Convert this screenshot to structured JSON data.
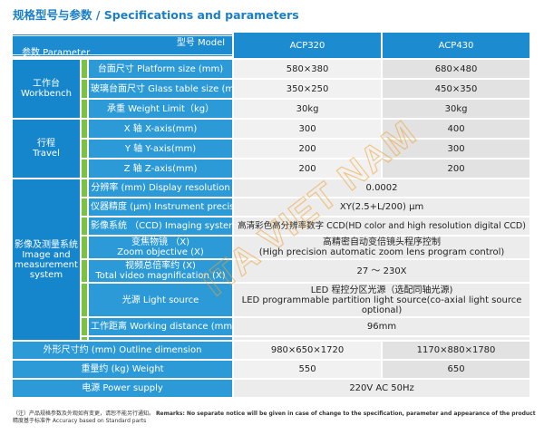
{
  "title": "规格型号与参数 / Specifications and parameters",
  "header": {
    "model_label": "型号 Model",
    "param_label": "参数 Parameter",
    "models": [
      "ACP320",
      "ACP430"
    ]
  },
  "groups": {
    "workbench": "工作台\nWorkbench",
    "travel": "行程\nTravel",
    "imaging": "影像及测量系统\nImage and\nmeasurement\nsystem"
  },
  "rows": {
    "platform": {
      "label": "台面尺寸 Platform size (mm)",
      "v1": "580×380",
      "v2": "680×480"
    },
    "glass": {
      "label": "玻璃台面尺寸 Glass table size (mm)",
      "v1": "350×250",
      "v2": "450×350"
    },
    "weight_limit": {
      "label": "承重 Weight Limit（kg）",
      "v1": "30kg",
      "v2": "30kg"
    },
    "x_axis": {
      "label": "X 轴 X-axis(mm)",
      "v1": "300",
      "v2": "400"
    },
    "y_axis": {
      "label": "Y 轴 Y-axis(mm)",
      "v1": "200",
      "v2": "300"
    },
    "z_axis": {
      "label": "Z 轴 Z-axis(mm)",
      "v1": "200",
      "v2": "200"
    },
    "resolution": {
      "label": "分辨率 (mm) Display resolution",
      "value": "0.0002"
    },
    "precision": {
      "label": "仪器精度 (μm) Instrument precision",
      "value": "XY(2.5+L/200)  μm"
    },
    "imaging_sys": {
      "label": "影像系统 （CCD) Imaging system",
      "value": "高清彩色高分辨率数字 CCD(HD color and high resolution digital CCD)"
    },
    "zoom": {
      "label": "变焦物镜 （X)\nZoom objective (X)",
      "value": "高精密自动变倍镜头程序控制\n(High precision automatic zoom lens program control)"
    },
    "magnification": {
      "label": "视频总倍率约 (X)\nTotal video magnification (X)",
      "value": "27 ～ 230X"
    },
    "light": {
      "label": "光源 Light source",
      "value": "LED 程控分区光源（选配同轴光源)\nLED programmable partition light source(co-axial light source\noptional)"
    },
    "working_distance": {
      "label": "工作距离 Working distance (mm)",
      "value": "96mm"
    },
    "outline": {
      "label": "外形尺寸约 (mm)  Outline dimension",
      "v1": "980×650×1720",
      "v2": "1170×880×1780"
    },
    "weight": {
      "label": "重量约 (kg) Weight",
      "v1": "550",
      "v2": "650"
    },
    "power": {
      "label": "电源 Power supply",
      "value": "220V  AC  50Hz"
    }
  },
  "footnote": {
    "line1_cn": "（注）产品规格参数及外观如有变更，请恕不能另行通知。",
    "line1_en": "Remarks: No separate notice will be given in case of change to the specification, parameter and appearance of the product",
    "line2": "精度基于标准件 Accuracy based on Standard parts"
  },
  "watermark": "ITA VIET NAM",
  "colors": {
    "title_blue": "#1a7fc4",
    "header_blue": "#1d8bcf",
    "group_blue": "#1686cc",
    "label_blue": "#2c9ad6",
    "accent_green": "#7cc142",
    "watermark_orange": "#f0a030"
  }
}
